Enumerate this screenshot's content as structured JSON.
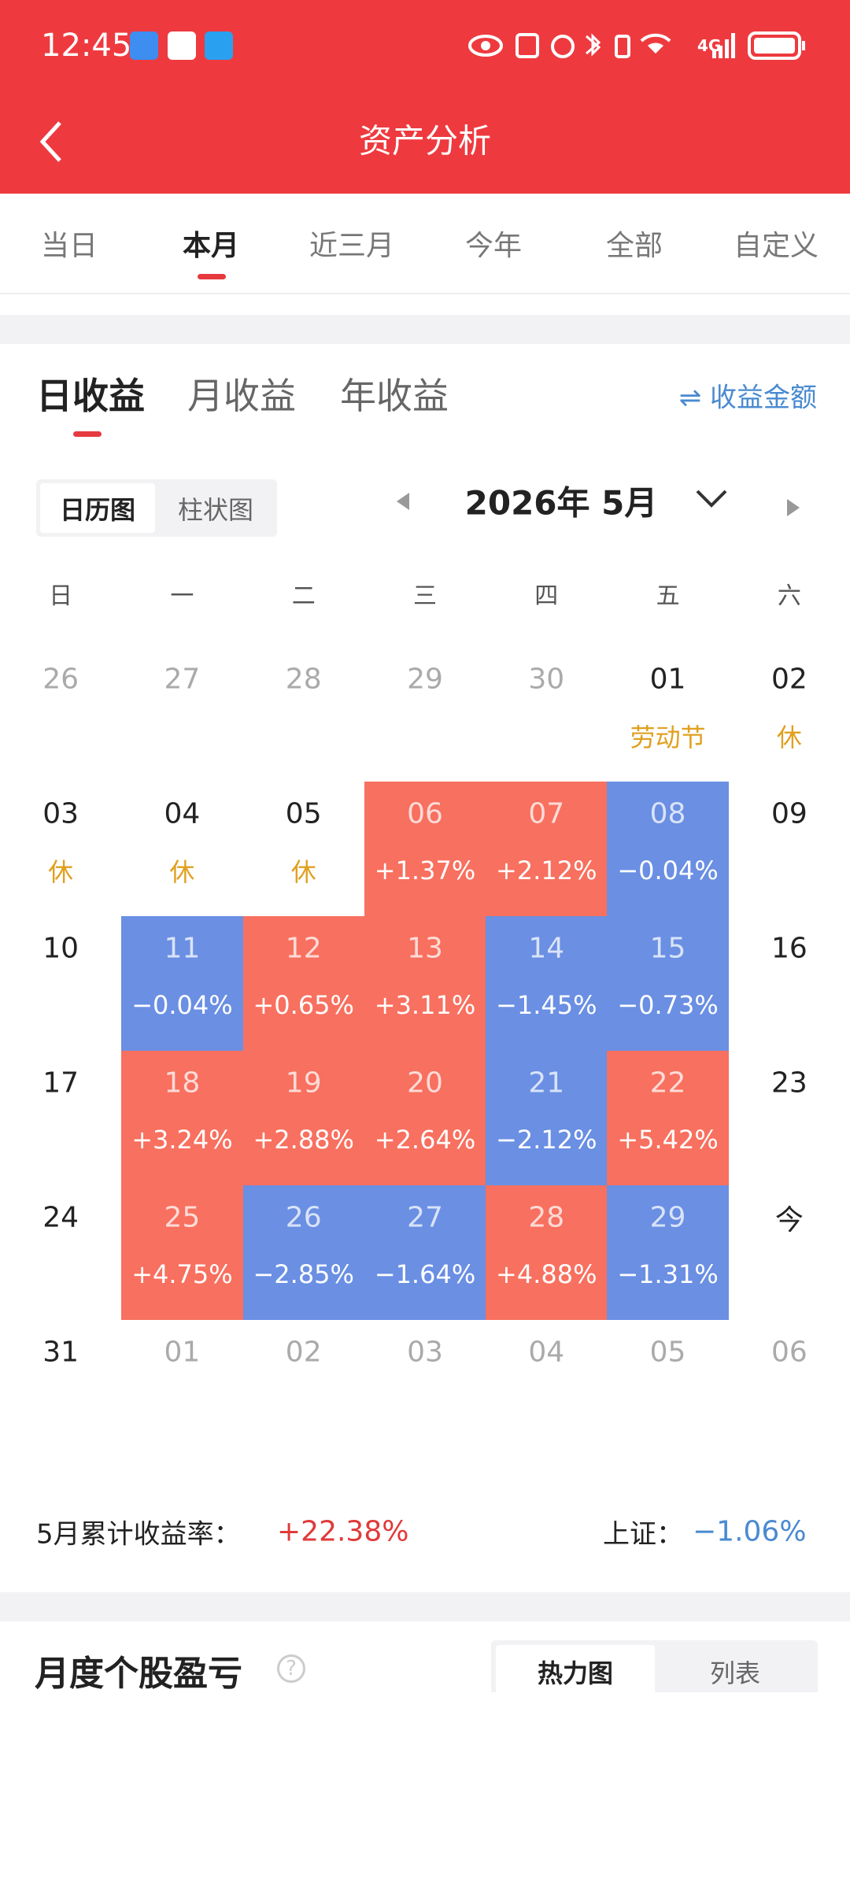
{
  "status_bar": {
    "time": "12:45",
    "network": "4G"
  },
  "header": {
    "title": "资产分析"
  },
  "period_tabs": [
    "当日",
    "本月",
    "近三月",
    "今年",
    "全部",
    "自定义"
  ],
  "profit_tabs": [
    "日收益",
    "月收益",
    "年收益"
  ],
  "display_toggle": "收益金额",
  "view_tabs": [
    "日历图",
    "柱状图"
  ],
  "month": "2026年 5月",
  "weekdays": [
    "日",
    "一",
    "二",
    "三",
    "四",
    "五",
    "六"
  ],
  "weeks": [
    [
      {
        "day": "26"
      },
      {
        "day": "27"
      },
      {
        "day": "28"
      },
      {
        "day": "29"
      },
      {
        "day": "30"
      },
      {
        "day": "01",
        "note": "劳动节"
      },
      {
        "day": "02",
        "note": "休"
      }
    ],
    [
      {
        "day": "03",
        "note": "休"
      },
      {
        "day": "04",
        "note": "休"
      },
      {
        "day": "05",
        "note": "休"
      },
      {
        "day": "06",
        "note": "+1.37%"
      },
      {
        "day": "07",
        "note": "+2.12%"
      },
      {
        "day": "08",
        "note": "−0.04%"
      },
      {
        "day": "09"
      }
    ],
    [
      {
        "day": "10"
      },
      {
        "day": "11",
        "note": "−0.04%"
      },
      {
        "day": "12",
        "note": "+0.65%"
      },
      {
        "day": "13",
        "note": "+3.11%"
      },
      {
        "day": "14",
        "note": "−1.45%"
      },
      {
        "day": "15",
        "note": "−0.73%"
      },
      {
        "day": "16"
      }
    ],
    [
      {
        "day": "17"
      },
      {
        "day": "18",
        "note": "+3.24%"
      },
      {
        "day": "19",
        "note": "+2.88%"
      },
      {
        "day": "20",
        "note": "+2.64%"
      },
      {
        "day": "21",
        "note": "−2.12%"
      },
      {
        "day": "22",
        "note": "+5.42%"
      },
      {
        "day": "23"
      }
    ],
    [
      {
        "day": "24"
      },
      {
        "day": "25",
        "note": "+4.75%"
      },
      {
        "day": "26",
        "note": "−2.85%"
      },
      {
        "day": "27",
        "note": "−1.64%"
      },
      {
        "day": "28",
        "note": "+4.88%"
      },
      {
        "day": "29",
        "note": "−1.31%"
      },
      {
        "day": "今"
      }
    ],
    [
      {
        "day": "31"
      },
      {
        "day": "01"
      },
      {
        "day": "02"
      },
      {
        "day": "03"
      },
      {
        "day": "04"
      },
      {
        "day": "05"
      },
      {
        "day": "06"
      }
    ]
  ],
  "summary": {
    "label": "5月累计收益率：",
    "value": "+22.38%",
    "index_label": "上证：",
    "index_value": "−1.06%"
  },
  "stock_section": {
    "title": "月度个股盈亏",
    "tabs": [
      "热力图",
      "列表"
    ]
  }
}
